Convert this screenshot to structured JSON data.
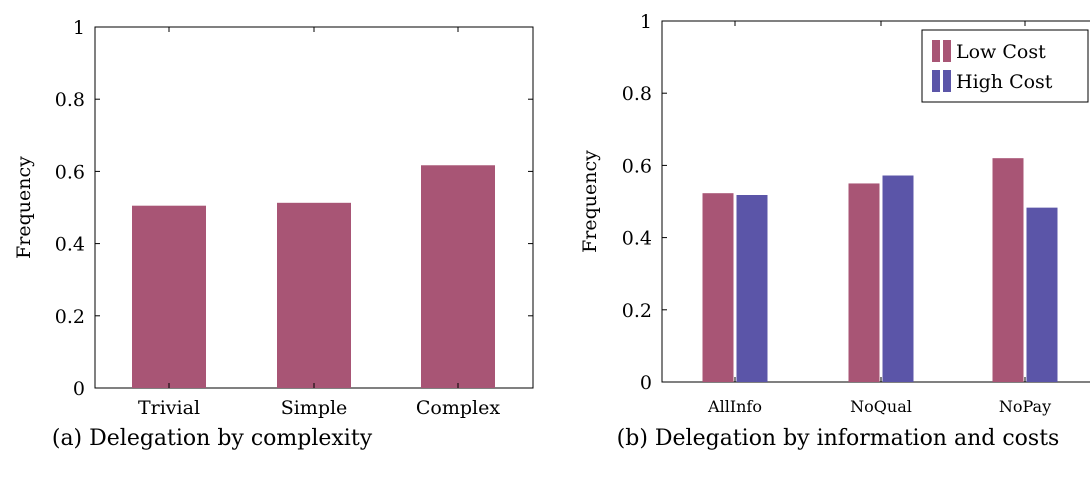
{
  "chart_data": [
    {
      "type": "bar",
      "categories": [
        "Trivial",
        "Simple",
        "Complex"
      ],
      "values": [
        0.505,
        0.513,
        0.617
      ],
      "ylabel": "Frequency",
      "ylim": [
        0,
        1
      ],
      "yticks": [
        "0",
        "0.2",
        "0.4",
        "0.6",
        "0.8",
        "1"
      ],
      "color": "#a85575",
      "caption": "(a) Delegation by complexity",
      "grid": false
    },
    {
      "type": "bar",
      "categories": [
        "AllInfo",
        "NoQual",
        "NoPay"
      ],
      "series": [
        {
          "name": "Low Cost",
          "values": [
            0.523,
            0.55,
            0.62
          ],
          "color": "#a85575"
        },
        {
          "name": "High Cost",
          "values": [
            0.518,
            0.572,
            0.483
          ],
          "color": "#5b55a8"
        }
      ],
      "ylabel": "Frequency",
      "ylim": [
        0,
        1
      ],
      "yticks": [
        "0",
        "0.2",
        "0.4",
        "0.6",
        "0.8",
        "1"
      ],
      "legend_position": "top-right",
      "caption": "(b) Delegation by information and costs",
      "grid": false
    }
  ]
}
